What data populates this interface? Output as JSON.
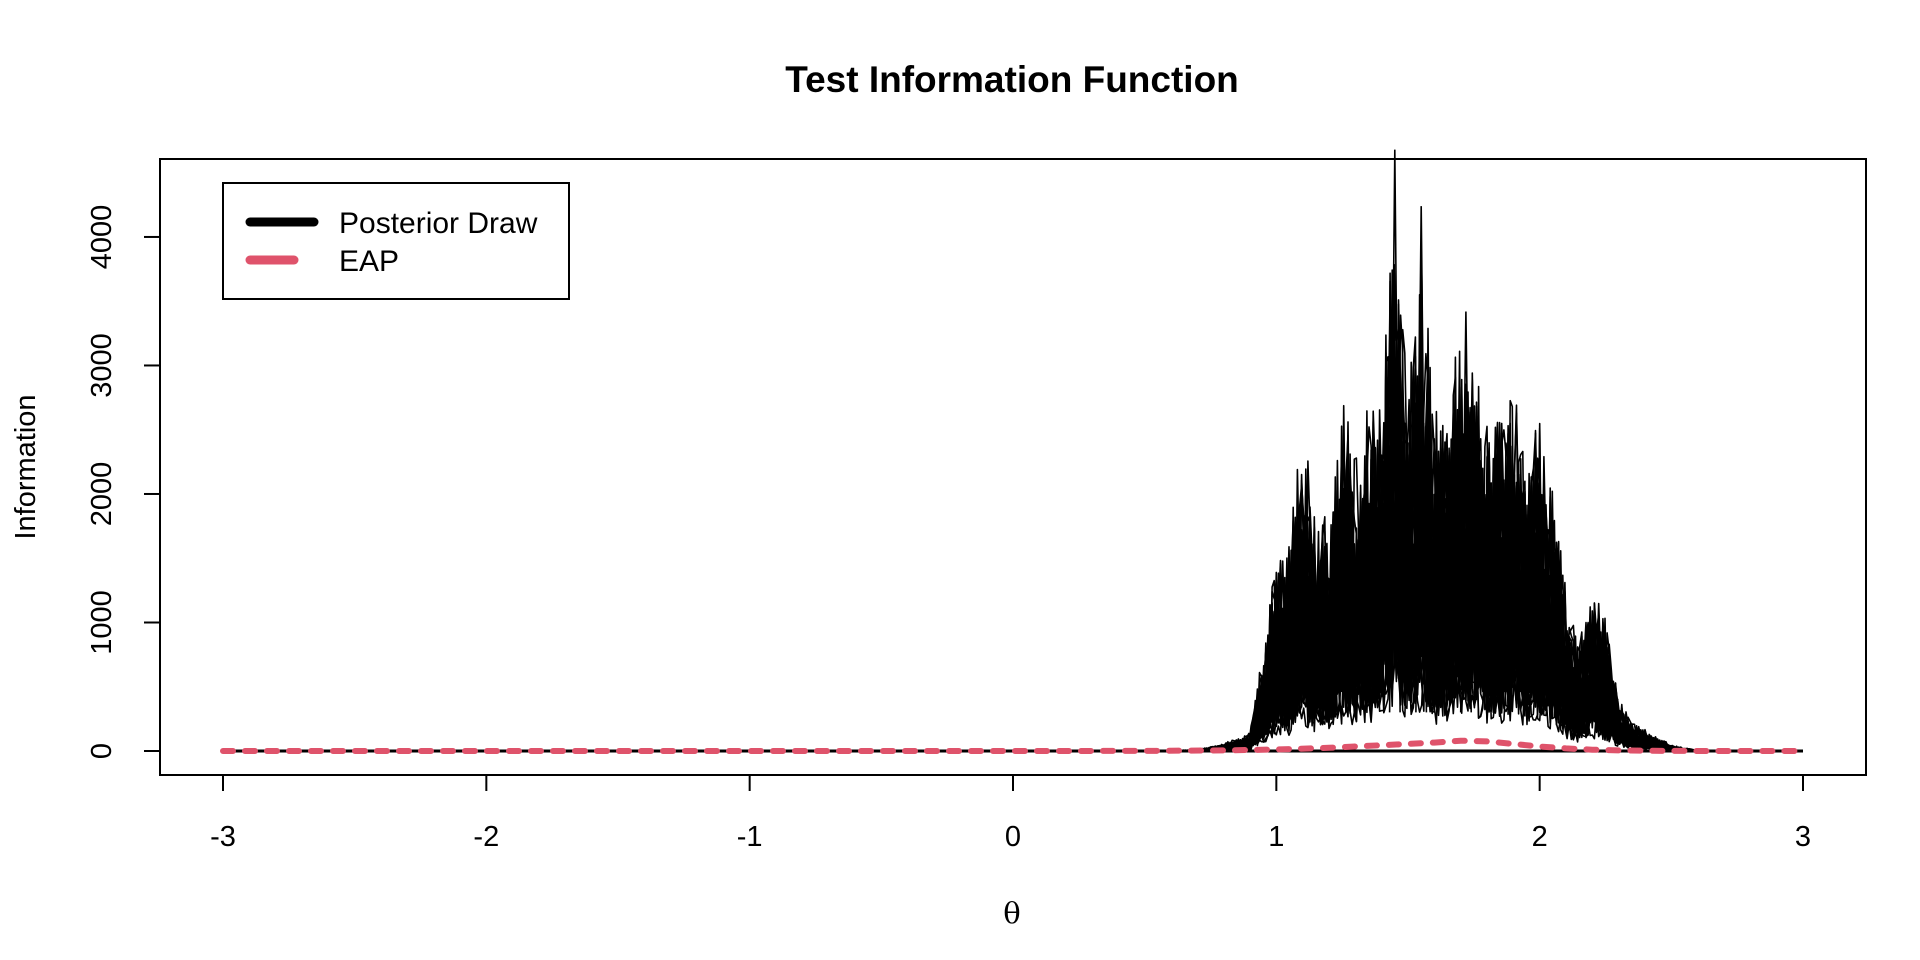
{
  "chart_data": {
    "type": "line",
    "title": "Test Information Function",
    "xlabel": "θ",
    "ylabel": "Information",
    "xlim": [
      -3,
      3
    ],
    "ylim": [
      0,
      4700
    ],
    "x_ticks": [
      -3,
      -2,
      -1,
      0,
      1,
      2,
      3
    ],
    "x_tick_labels": [
      "-3",
      "-2",
      "-1",
      "0",
      "1",
      "2",
      "3"
    ],
    "y_ticks": [
      0,
      1000,
      2000,
      3000,
      4000
    ],
    "y_tick_labels": [
      "0",
      "1000",
      "2000",
      "3000",
      "4000"
    ],
    "grid": false,
    "legend": {
      "position": "top-left",
      "entries": [
        {
          "label": "Posterior Draw",
          "color": "#000000",
          "style": "solid"
        },
        {
          "label": "EAP",
          "color": "#DF536B",
          "style": "dashed"
        }
      ]
    },
    "series": [
      {
        "name": "Posterior Draw",
        "color": "#000000",
        "style": "solid",
        "envelope_x": [
          -3,
          0.5,
          0.7,
          0.8,
          0.9,
          0.95,
          1.0,
          1.05,
          1.1,
          1.15,
          1.2,
          1.25,
          1.3,
          1.35,
          1.4,
          1.45,
          1.5,
          1.55,
          1.6,
          1.65,
          1.7,
          1.75,
          1.8,
          1.85,
          1.9,
          1.95,
          2.0,
          2.05,
          2.1,
          2.15,
          2.2,
          2.25,
          2.3,
          2.35,
          2.4,
          2.5,
          2.6,
          3.0
        ],
        "envelope_max": [
          0,
          0,
          10,
          60,
          150,
          850,
          1600,
          1700,
          2800,
          2000,
          2000,
          2900,
          2500,
          2800,
          3100,
          4680,
          3000,
          4240,
          2800,
          3000,
          3420,
          3400,
          3000,
          2900,
          3000,
          2500,
          2900,
          2250,
          1300,
          900,
          1350,
          1100,
          450,
          250,
          180,
          50,
          5,
          0
        ],
        "peaks": [
          {
            "x": 1.45,
            "y": 4680
          },
          {
            "x": 1.55,
            "y": 4240
          },
          {
            "x": 1.72,
            "y": 3420
          }
        ]
      },
      {
        "name": "EAP",
        "color": "#DF536B",
        "style": "dashed",
        "x": [
          -3.0,
          -2.5,
          -2.0,
          -1.5,
          -1.0,
          -0.5,
          0.0,
          0.5,
          0.8,
          1.0,
          1.2,
          1.4,
          1.5,
          1.6,
          1.7,
          1.8,
          1.9,
          2.0,
          2.1,
          2.2,
          2.3,
          2.5,
          2.7,
          3.0
        ],
        "y": [
          0,
          0,
          0,
          0,
          0,
          0,
          0,
          1,
          5,
          12,
          25,
          45,
          55,
          65,
          80,
          75,
          55,
          35,
          20,
          10,
          5,
          1,
          0,
          0
        ]
      }
    ]
  }
}
